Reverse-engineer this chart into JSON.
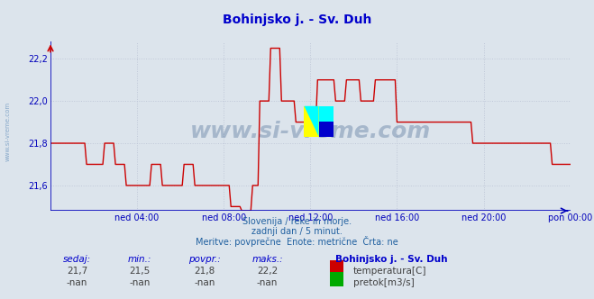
{
  "title": "Bohinjsko j. - Sv. Duh",
  "bg_color": "#dce4ec",
  "plot_bg_color": "#dce4ec",
  "line_color": "#cc0000",
  "line_width": 1.0,
  "ylim": [
    21.48,
    22.28
  ],
  "yticks": [
    21.6,
    21.8,
    22.0,
    22.2
  ],
  "xlim": [
    0,
    288
  ],
  "xtick_positions": [
    48,
    96,
    144,
    192,
    240,
    288
  ],
  "xtick_labels": [
    "ned 04:00",
    "ned 08:00",
    "ned 12:00",
    "ned 16:00",
    "ned 20:00",
    "pon 00:00"
  ],
  "grid_color": "#c0c8d8",
  "grid_linestyle": ":",
  "axis_color": "#0000bb",
  "watermark": "www.si-vreme.com",
  "watermark_color": "#2a5080",
  "watermark_alpha": 0.3,
  "subtitle1": "Slovenija / reke in morje.",
  "subtitle2": "zadnji dan / 5 minut.",
  "subtitle3": "Meritve: povprečne  Enote: metrične  Črta: ne",
  "subtitle_color": "#2060a0",
  "footer_labels": [
    "sedaj:",
    "min.:",
    "povpr.:",
    "maks.:"
  ],
  "footer_values1": [
    "21,7",
    "21,5",
    "21,8",
    "22,2"
  ],
  "footer_values2": [
    "-nan",
    "-nan",
    "-nan",
    "-nan"
  ],
  "station_name": "Bohinjsko j. - Sv. Duh",
  "legend1": "temperatura[C]",
  "legend1_color": "#cc0000",
  "legend2": "pretok[m3/s]",
  "legend2_color": "#00aa00",
  "sidewatermark": "www.si-vreme.com",
  "sidewatermark_color": "#2060a0",
  "sidewatermark_alpha": 0.45,
  "title_color": "#0000cc",
  "title_fontsize": 10
}
